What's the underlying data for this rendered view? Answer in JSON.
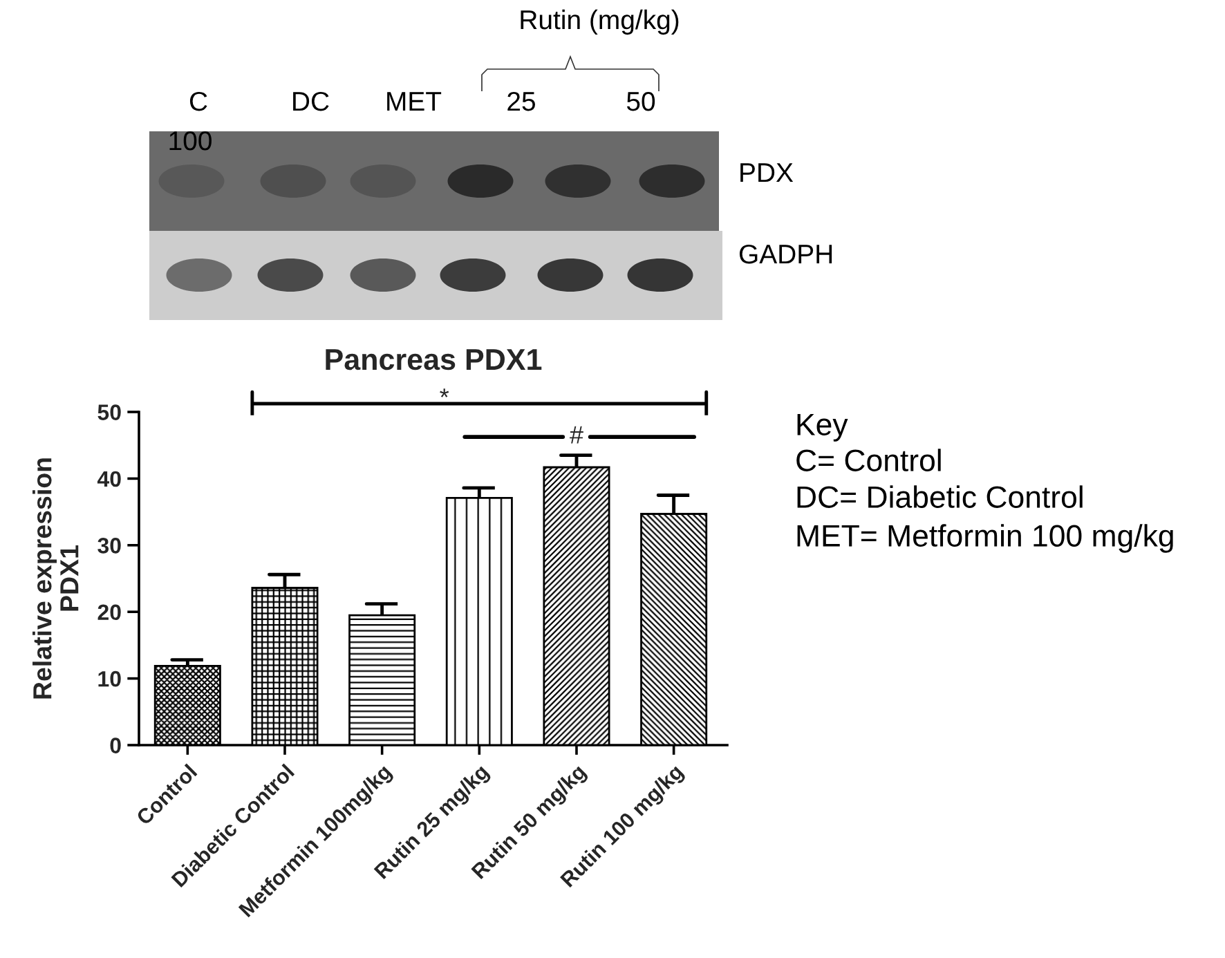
{
  "chart_data": {
    "type": "bar",
    "title": "Pancreas PDX1",
    "ylabel": "Relative expression\nPDX1",
    "categories": [
      "Control",
      "Diabetic Control",
      "Metformin 100mg/kg",
      "Rutin 25 mg/kg",
      "Rutin 50 mg/kg",
      "Rutin 100 mg/kg"
    ],
    "values": [
      11.9,
      23.6,
      19.5,
      37.1,
      41.7,
      34.7
    ],
    "errors": [
      [
        11.9,
        12.8
      ],
      [
        23.6,
        25.6
      ],
      [
        19.5,
        21.2
      ],
      [
        37.1,
        38.6
      ],
      [
        41.7,
        43.5
      ],
      [
        34.7,
        37.5
      ]
    ],
    "color": "#000000",
    "ylim": [
      0,
      50
    ],
    "yticks": [
      0,
      10,
      20,
      30,
      40,
      50
    ],
    "annotations": [
      "*",
      "#",
      "Rutin (mg/kg)",
      "C",
      "DC",
      "MET",
      "25",
      "50",
      "100",
      "PDX",
      "GADPH",
      "Key",
      "C= Control",
      "DC= Diabetic Control",
      "MET= Metformin 100 mg/kg"
    ]
  }
}
